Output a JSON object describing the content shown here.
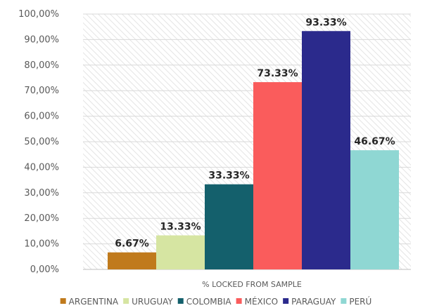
{
  "chart_data": {
    "type": "bar",
    "xlabel": "% LOCKED FROM SAMPLE",
    "ylim": [
      0,
      100
    ],
    "yticks": [
      "0,00%",
      "10,00%",
      "20,00%",
      "30,00%",
      "40,00%",
      "50,00%",
      "60,00%",
      "70,00%",
      "80,00%",
      "90,00%",
      "100,00%"
    ],
    "grid": true,
    "legend_position": "bottom",
    "series": [
      {
        "name": "ARGENTINA",
        "value": 6.67,
        "label": "6.67%",
        "color": "#c07a1c"
      },
      {
        "name": "URUGUAY",
        "value": 13.33,
        "label": "13.33%",
        "color": "#d6e5a2"
      },
      {
        "name": "COLOMBIA",
        "value": 33.33,
        "label": "33.33%",
        "color": "#14606c"
      },
      {
        "name": "MÉXICO",
        "value": 73.33,
        "label": "73.33%",
        "color": "#fa5c5c"
      },
      {
        "name": "PARAGUAY",
        "value": 93.33,
        "label": "93.33%",
        "color": "#2b2a8c"
      },
      {
        "name": "PERÚ",
        "value": 46.67,
        "label": "46.67%",
        "color": "#8fd7d3"
      }
    ]
  }
}
